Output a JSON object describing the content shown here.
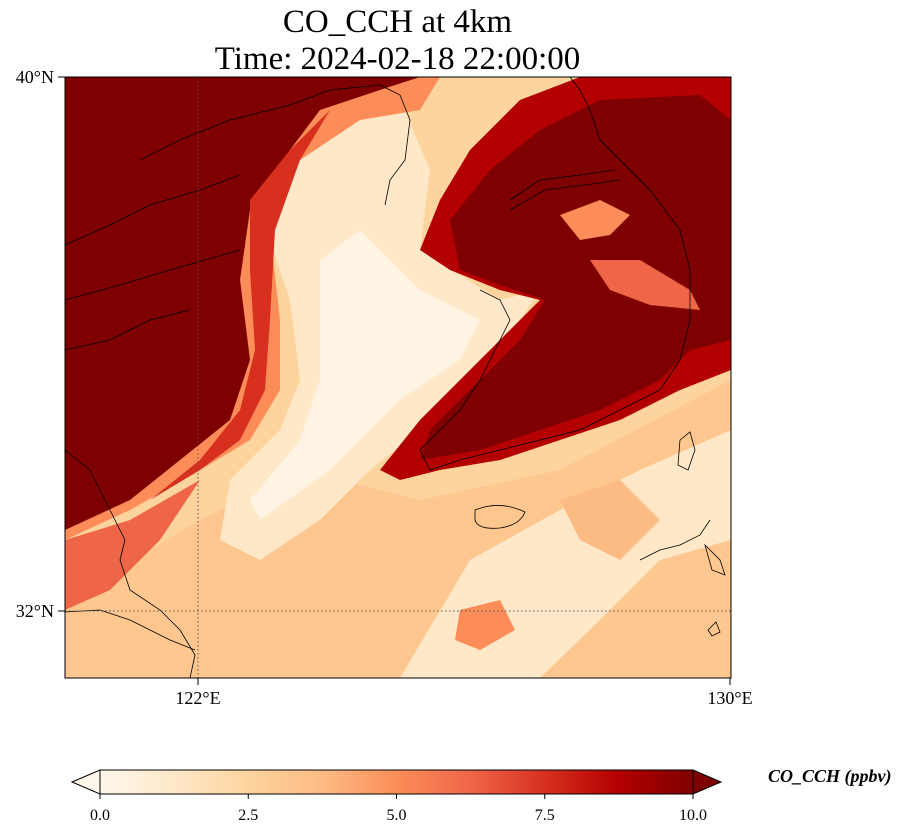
{
  "title": {
    "line1": "CO_CCH at 4km",
    "line2": "Time: 2024-02-18 22:00:00"
  },
  "map": {
    "lon_range": [
      120,
      130
    ],
    "lat_range": [
      31,
      40
    ],
    "lat_labels": [
      "40°N",
      "32°N"
    ],
    "lon_labels": [
      "122°E",
      "130°E"
    ],
    "gridlines": {
      "lat": 32,
      "lon": 122
    }
  },
  "colorbar": {
    "label": "CO_CCH (ppbv)",
    "ticks": [
      "0.0",
      "2.5",
      "5.0",
      "7.5",
      "10.0"
    ],
    "vmin": 0.0,
    "vmax": 10.0,
    "extend": "both",
    "colors": [
      "#fff7ec",
      "#fee8c8",
      "#fdd49e",
      "#fdbb84",
      "#fc8d59",
      "#ef6548",
      "#d7301f",
      "#b30000",
      "#7f0000"
    ]
  }
}
